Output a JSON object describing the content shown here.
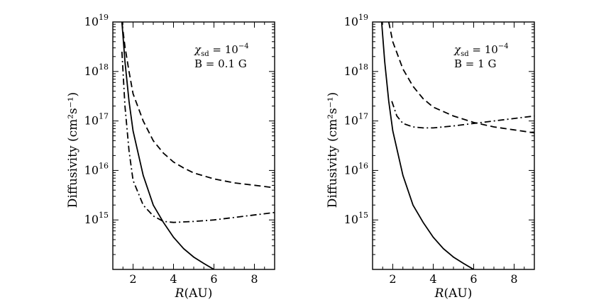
{
  "chart_data": [
    {
      "type": "line",
      "panel": "left",
      "xlabel_italic": "R",
      "xlabel_unit": "(AU)",
      "ylabel_text": "Diffusivity",
      "ylabel_unit": "(cm²s⁻¹)",
      "xlim": [
        1,
        9
      ],
      "ylim_log10": [
        14,
        19
      ],
      "x_ticks": [
        2,
        4,
        6,
        8
      ],
      "y_tick_exponents": [
        15,
        16,
        17,
        18,
        19
      ],
      "annotation": {
        "chi_symbol": "χ",
        "chi_sub": "sd",
        "chi_rhs": "= 10",
        "chi_exp": "−4",
        "b_text": "B = 0.1 G"
      },
      "series": [
        {
          "name": "solid",
          "style": "solid",
          "points": [
            [
              1.45,
              19.0
            ],
            [
              1.6,
              18.2
            ],
            [
              1.8,
              17.4
            ],
            [
              2,
              16.8
            ],
            [
              2.5,
              15.9
            ],
            [
              3,
              15.3
            ],
            [
              3.5,
              14.95
            ],
            [
              4,
              14.65
            ],
            [
              4.5,
              14.42
            ],
            [
              5,
              14.25
            ],
            [
              5.5,
              14.12
            ],
            [
              6,
              14.0
            ]
          ]
        },
        {
          "name": "dashed",
          "style": "dashed",
          "points": [
            [
              1.45,
              19.0
            ],
            [
              1.6,
              18.5
            ],
            [
              1.8,
              18.0
            ],
            [
              2,
              17.55
            ],
            [
              2.5,
              17.0
            ],
            [
              3,
              16.6
            ],
            [
              3.5,
              16.35
            ],
            [
              4,
              16.17
            ],
            [
              4.5,
              16.05
            ],
            [
              5,
              15.95
            ],
            [
              6,
              15.83
            ],
            [
              7,
              15.75
            ],
            [
              8,
              15.7
            ],
            [
              9,
              15.65
            ]
          ]
        },
        {
          "name": "dash-dot",
          "style": "dashdot",
          "points": [
            [
              1.45,
              18.4
            ],
            [
              1.6,
              17.3
            ],
            [
              1.8,
              16.4
            ],
            [
              2,
              15.8
            ],
            [
              2.5,
              15.3
            ],
            [
              3,
              15.08
            ],
            [
              3.5,
              14.97
            ],
            [
              4,
              14.95
            ],
            [
              5,
              14.97
            ],
            [
              6,
              15.0
            ],
            [
              7,
              15.05
            ],
            [
              8,
              15.1
            ],
            [
              9,
              15.15
            ]
          ]
        }
      ]
    },
    {
      "type": "line",
      "panel": "right",
      "xlabel_italic": "R",
      "xlabel_unit": "(AU)",
      "ylabel_text": "Diffusivity",
      "ylabel_unit": "(cm²s⁻¹)",
      "xlim": [
        1,
        9
      ],
      "ylim_log10": [
        14,
        19
      ],
      "x_ticks": [
        2,
        4,
        6,
        8
      ],
      "y_tick_exponents": [
        15,
        16,
        17,
        18,
        19
      ],
      "annotation": {
        "chi_symbol": "χ",
        "chi_sub": "sd",
        "chi_rhs": "= 10",
        "chi_exp": "−4",
        "b_text": "B = 1 G"
      },
      "series": [
        {
          "name": "solid",
          "style": "solid",
          "points": [
            [
              1.45,
              19.0
            ],
            [
              1.6,
              18.2
            ],
            [
              1.8,
              17.4
            ],
            [
              2,
              16.8
            ],
            [
              2.5,
              15.9
            ],
            [
              3,
              15.3
            ],
            [
              3.5,
              14.95
            ],
            [
              4,
              14.65
            ],
            [
              4.5,
              14.42
            ],
            [
              5,
              14.25
            ],
            [
              5.5,
              14.12
            ],
            [
              6,
              14.0
            ]
          ]
        },
        {
          "name": "dashed",
          "style": "dashed",
          "points": [
            [
              1.8,
              19.0
            ],
            [
              2,
              18.6
            ],
            [
              2.5,
              18.05
            ],
            [
              3,
              17.7
            ],
            [
              3.5,
              17.45
            ],
            [
              4,
              17.28
            ],
            [
              5,
              17.1
            ],
            [
              6,
              16.97
            ],
            [
              7,
              16.88
            ],
            [
              8,
              16.82
            ],
            [
              9,
              16.76
            ]
          ]
        },
        {
          "name": "dash-dot",
          "style": "dashdot",
          "points": [
            [
              1.95,
              17.4
            ],
            [
              2.2,
              17.1
            ],
            [
              2.5,
              16.95
            ],
            [
              3,
              16.88
            ],
            [
              3.5,
              16.86
            ],
            [
              4,
              16.86
            ],
            [
              5,
              16.9
            ],
            [
              6,
              16.95
            ],
            [
              7,
              17.0
            ],
            [
              8,
              17.05
            ],
            [
              9,
              17.1
            ]
          ]
        }
      ]
    }
  ]
}
